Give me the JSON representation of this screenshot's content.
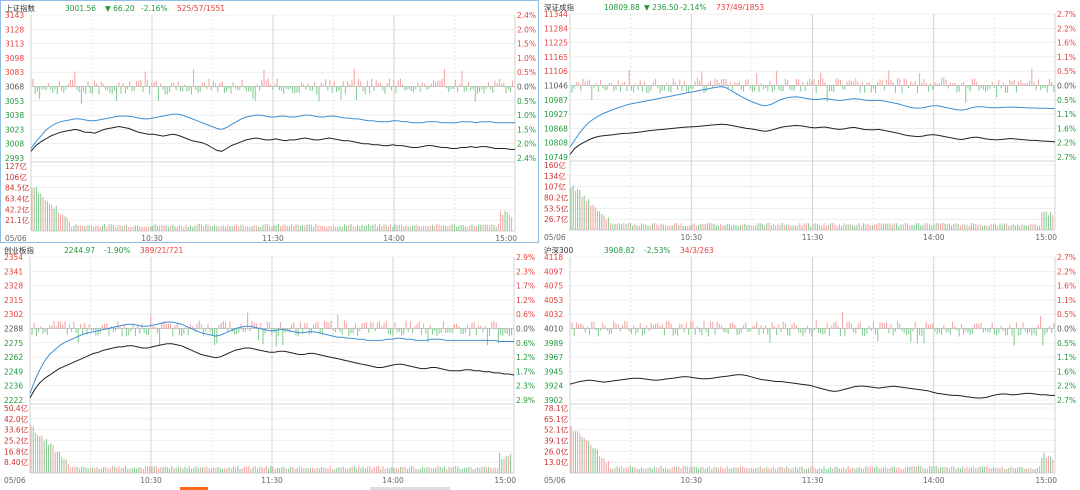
{
  "colors": {
    "up": "#e8403d",
    "down": "#1f9a3b",
    "neutral": "#555555",
    "price_line": "#222222",
    "avg_line": "#3a8fd6",
    "up_bar": "#f2a0a0",
    "down_bar": "#7fc98e",
    "grid": "#e3e3e3",
    "grid_major": "#c8c8c8",
    "selected_border": "#8fbde6"
  },
  "panels": [
    {
      "header": {
        "name": "上证指数",
        "price": "3001.56",
        "arrow": "▼",
        "change": "66.20",
        "pct": "-2.16%",
        "breadth": "525/57/1551"
      },
      "chart_data": {
        "type": "line",
        "left_price_ticks": [
          "3143",
          "3128",
          "3113",
          "3098",
          "3083",
          "3068",
          "3053",
          "3038",
          "3023",
          "3008",
          "2993"
        ],
        "right_pct_ticks": [
          "2.4%",
          "2.0%",
          "1.5%",
          "1.0%",
          "0.5%",
          "0.0%",
          "0.5%",
          "1.0%",
          "1.5%",
          "2.0%",
          "2.4%"
        ],
        "volume_ticks": [
          "127亿",
          "106亿",
          "84.5亿",
          "63.4亿",
          "42.2亿",
          "21.1亿"
        ],
        "time_ticks": [
          "05/06",
          "10:30",
          "11:30",
          "14:00",
          "15:00"
        ],
        "ylim_price": [
          2993,
          3143
        ],
        "ylim_volume": [
          0,
          127
        ],
        "series": [
          {
            "values": [
              3000,
              3006,
              3010,
              3013,
              3016,
              3018,
              3020,
              3021,
              3022,
              3023,
              3022,
              3020,
              3020,
              3019,
              3021,
              3023,
              3024,
              3025,
              3026,
              3025,
              3024,
              3022,
              3020,
              3019,
              3018,
              3018,
              3017,
              3016,
              3017,
              3018,
              3017,
              3015,
              3013,
              3011,
              3010,
              3009,
              3007,
              3004,
              3001,
              3000,
              3003,
              3006,
              3008,
              3010,
              3012,
              3013,
              3014,
              3013,
              3012,
              3012,
              3013,
              3012,
              3011,
              3012,
              3012,
              3013,
              3014,
              3013,
              3012,
              3012,
              3013,
              3014,
              3013,
              3012,
              3011,
              3011,
              3010,
              3009,
              3008,
              3008,
              3007,
              3007,
              3006,
              3006,
              3007,
              3006,
              3006,
              3005,
              3004,
              3004,
              3005,
              3006,
              3006,
              3005,
              3004,
              3004,
              3003,
              3003,
              3004,
              3004,
              3005,
              3004,
              3005,
              3005,
              3004,
              3003,
              3003,
              3003,
              3002,
              3002
            ]
          },
          {
            "values": [
              3003,
              3010,
              3016,
              3022,
              3026,
              3029,
              3031,
              3032,
              3033,
              3034,
              3034,
              3033,
              3032,
              3032,
              3033,
              3034,
              3035,
              3036,
              3037,
              3037,
              3037,
              3036,
              3035,
              3034,
              3034,
              3035,
              3036,
              3037,
              3038,
              3039,
              3039,
              3038,
              3036,
              3034,
              3032,
              3030,
              3028,
              3026,
              3024,
              3023,
              3025,
              3028,
              3031,
              3034,
              3036,
              3037,
              3038,
              3038,
              3037,
              3036,
              3036,
              3037,
              3037,
              3036,
              3036,
              3037,
              3038,
              3038,
              3037,
              3036,
              3036,
              3037,
              3037,
              3036,
              3035,
              3035,
              3034,
              3034,
              3033,
              3032,
              3032,
              3031,
              3031,
              3031,
              3032,
              3032,
              3031,
              3031,
              3030,
              3030,
              3030,
              3031,
              3031,
              3031,
              3030,
              3030,
              3030,
              3030,
              3031,
              3031,
              3031,
              3030,
              3031,
              3031,
              3031,
              3030,
              3030,
              3030,
              3030,
              3030
            ]
          }
        ]
      }
    },
    {
      "header": {
        "name": "深证成指",
        "price": "10809.88",
        "arrow": "▼",
        "change": "236.50",
        "pct": "-2.14%",
        "breadth": "737/49/1853"
      },
      "chart_data": {
        "type": "line",
        "left_price_ticks": [
          "11344",
          "11284",
          "11225",
          "11165",
          "11106",
          "11046",
          "10987",
          "10927",
          "10868",
          "10808",
          "10749"
        ],
        "right_pct_ticks": [
          "2.7%",
          "2.2%",
          "1.6%",
          "1.1%",
          "0.5%",
          "0.0%",
          "0.5%",
          "1.1%",
          "1.6%",
          "2.2%",
          "2.7%"
        ],
        "volume_ticks": [
          "160亿",
          "134亿",
          "107亿",
          "80.2亿",
          "53.5亿",
          "26.7亿"
        ],
        "time_ticks": [
          "05/06",
          "10:30",
          "11:30",
          "14:00",
          "15:00"
        ],
        "ylim_price": [
          10749,
          11344
        ],
        "ylim_volume": [
          0,
          160
        ],
        "series": [
          {
            "values": [
              10760,
              10785,
              10800,
              10812,
              10822,
              10830,
              10835,
              10838,
              10840,
              10842,
              10845,
              10847,
              10848,
              10850,
              10852,
              10855,
              10858,
              10860,
              10862,
              10864,
              10866,
              10868,
              10870,
              10872,
              10874,
              10875,
              10876,
              10878,
              10880,
              10882,
              10884,
              10885,
              10884,
              10880,
              10876,
              10872,
              10868,
              10866,
              10862,
              10858,
              10856,
              10860,
              10866,
              10872,
              10876,
              10878,
              10880,
              10879,
              10876,
              10872,
              10870,
              10872,
              10874,
              10870,
              10866,
              10864,
              10866,
              10870,
              10872,
              10868,
              10864,
              10862,
              10862,
              10864,
              10860,
              10856,
              10852,
              10848,
              10842,
              10838,
              10836,
              10834,
              10836,
              10840,
              10842,
              10840,
              10836,
              10832,
              10828,
              10824,
              10822,
              10826,
              10830,
              10832,
              10828,
              10824,
              10822,
              10820,
              10822,
              10824,
              10826,
              10824,
              10822,
              10820,
              10818,
              10818,
              10816,
              10815,
              10814,
              10812
            ]
          },
          {
            "values": [
              10790,
              10820,
              10850,
              10875,
              10895,
              10910,
              10922,
              10932,
              10940,
              10948,
              10955,
              10962,
              10968,
              10972,
              10976,
              10980,
              10984,
              10988,
              10992,
              10996,
              11000,
              11004,
              11008,
              11012,
              11016,
              11020,
              11024,
              11028,
              11032,
              11036,
              11040,
              11042,
              11036,
              11024,
              11012,
              11000,
              10990,
              10980,
              10972,
              10965,
              10962,
              10968,
              10978,
              10988,
              10994,
              10998,
              11000,
              10998,
              10994,
              10990,
              10988,
              10990,
              10992,
              10990,
              10986,
              10984,
              10986,
              10990,
              10992,
              10990,
              10986,
              10984,
              10984,
              10985,
              10982,
              10978,
              10974,
              10970,
              10964,
              10958,
              10954,
              10952,
              10954,
              10958,
              10962,
              10962,
              10958,
              10954,
              10950,
              10946,
              10944,
              10948,
              10954,
              10958,
              10958,
              10956,
              10954,
              10954,
              10955,
              10956,
              10957,
              10956,
              10955,
              10954,
              10953,
              10953,
              10952,
              10952,
              10951,
              10951
            ]
          }
        ]
      }
    },
    {
      "header": {
        "name": "创业板指",
        "price": "2244.97",
        "arrow": "",
        "change": "",
        "pct": "-1.90%",
        "breadth": "389/21/721"
      },
      "chart_data": {
        "type": "line",
        "left_price_ticks": [
          "2354",
          "2341",
          "2328",
          "2315",
          "2302",
          "2288",
          "2275",
          "2262",
          "2249",
          "2236",
          "2222"
        ],
        "right_pct_ticks": [
          "2.9%",
          "2.3%",
          "1.7%",
          "1.2%",
          "0.6%",
          "0.0%",
          "0.6%",
          "1.2%",
          "1.7%",
          "2.3%",
          "2.9%"
        ],
        "volume_ticks": [
          "50.4亿",
          "42.0亿",
          "33.6亿",
          "25.2亿",
          "16.8亿",
          "8.40亿"
        ],
        "time_ticks": [
          "05/06",
          "10:30",
          "11:30",
          "14:00",
          "15:00"
        ],
        "ylim_price": [
          2222,
          2354
        ],
        "ylim_volume": [
          0,
          50.4
        ],
        "series": [
          {
            "values": [
              2224,
              2232,
              2238,
              2242,
              2245,
              2248,
              2251,
              2253,
              2255,
              2257,
              2259,
              2261,
              2263,
              2265,
              2266,
              2268,
              2269,
              2270,
              2271,
              2271,
              2272,
              2272,
              2271,
              2270,
              2270,
              2271,
              2272,
              2273,
              2274,
              2274,
              2273,
              2272,
              2270,
              2268,
              2266,
              2264,
              2263,
              2262,
              2261,
              2262,
              2264,
              2266,
              2268,
              2269,
              2270,
              2270,
              2269,
              2268,
              2267,
              2266,
              2266,
              2267,
              2267,
              2266,
              2265,
              2264,
              2264,
              2265,
              2265,
              2264,
              2263,
              2262,
              2261,
              2260,
              2259,
              2258,
              2257,
              2256,
              2255,
              2254,
              2253,
              2252,
              2252,
              2253,
              2254,
              2255,
              2255,
              2254,
              2253,
              2252,
              2251,
              2251,
              2252,
              2252,
              2251,
              2250,
              2249,
              2249,
              2249,
              2250,
              2250,
              2249,
              2249,
              2248,
              2248,
              2247,
              2247,
              2246,
              2246,
              2245
            ]
          },
          {
            "values": [
              2228,
              2240,
              2250,
              2258,
              2264,
              2268,
              2272,
              2275,
              2277,
              2279,
              2281,
              2283,
              2284,
              2285,
              2286,
              2287,
              2288,
              2289,
              2290,
              2291,
              2292,
              2292,
              2291,
              2290,
              2290,
              2291,
              2292,
              2293,
              2294,
              2294,
              2293,
              2292,
              2290,
              2288,
              2286,
              2284,
              2283,
              2282,
              2281,
              2282,
              2284,
              2286,
              2288,
              2289,
              2290,
              2290,
              2289,
              2288,
              2287,
              2286,
              2286,
              2287,
              2287,
              2286,
              2285,
              2284,
              2284,
              2285,
              2285,
              2284,
              2283,
              2282,
              2281,
              2280,
              2280,
              2279,
              2279,
              2278,
              2278,
              2277,
              2277,
              2277,
              2277,
              2278,
              2278,
              2279,
              2279,
              2278,
              2278,
              2277,
              2277,
              2277,
              2278,
              2278,
              2278,
              2277,
              2277,
              2277,
              2277,
              2277,
              2277,
              2277,
              2277,
              2277,
              2277,
              2277,
              2276,
              2276,
              2276,
              2276
            ]
          }
        ]
      }
    },
    {
      "header": {
        "name": "沪深300",
        "price": "3908.82",
        "arrow": "",
        "change": "",
        "pct": "-2.53%",
        "breadth": "34/3/263"
      },
      "chart_data": {
        "type": "line",
        "left_price_ticks": [
          "4118",
          "4097",
          "4075",
          "4053",
          "4032",
          "4010",
          "3989",
          "3967",
          "3945",
          "3924",
          "3902"
        ],
        "right_pct_ticks": [
          "2.7%",
          "2.2%",
          "1.6%",
          "1.1%",
          "0.5%",
          "0.0%",
          "0.5%",
          "1.1%",
          "1.6%",
          "2.2%",
          "2.7%"
        ],
        "volume_ticks": [
          "78.1亿",
          "65.1亿",
          "52.1亿",
          "39.1亿",
          "26.0亿",
          "13.0亿"
        ],
        "time_ticks": [
          "05/06",
          "10:30",
          "11:30",
          "14:00",
          "15:00"
        ],
        "ylim_price": [
          3902,
          4118
        ],
        "ylim_volume": [
          0,
          78.1
        ],
        "series": [
          {
            "values": [
              3926,
              3928,
              3930,
              3931,
              3932,
              3931,
              3930,
              3929,
              3930,
              3931,
              3932,
              3933,
              3934,
              3935,
              3935,
              3934,
              3933,
              3932,
              3932,
              3933,
              3934,
              3935,
              3936,
              3937,
              3937,
              3936,
              3935,
              3934,
              3934,
              3935,
              3936,
              3937,
              3938,
              3939,
              3940,
              3940,
              3939,
              3937,
              3935,
              3933,
              3932,
              3931,
              3930,
              3930,
              3929,
              3928,
              3927,
              3926,
              3925,
              3924,
              3922,
              3920,
              3918,
              3916,
              3915,
              3916,
              3918,
              3920,
              3922,
              3923,
              3923,
              3922,
              3921,
              3920,
              3921,
              3922,
              3923,
              3922,
              3921,
              3920,
              3919,
              3918,
              3917,
              3916,
              3914,
              3912,
              3911,
              3910,
              3909,
              3909,
              3908,
              3907,
              3906,
              3905,
              3905,
              3906,
              3908,
              3910,
              3911,
              3911,
              3910,
              3910,
              3911,
              3912,
              3912,
              3911,
              3910,
              3910,
              3909,
              3909
            ]
          }
        ]
      }
    }
  ]
}
